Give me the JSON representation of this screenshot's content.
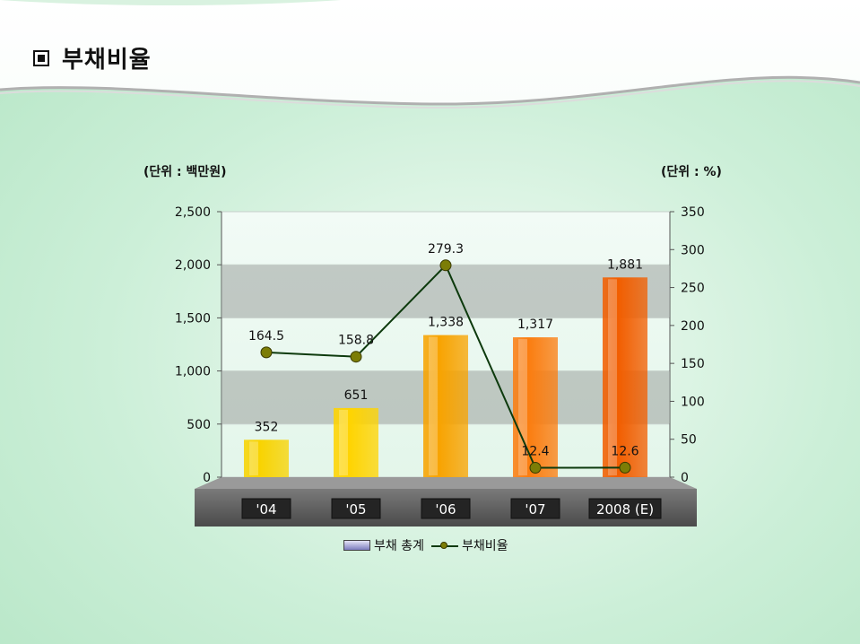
{
  "title": "부채비율",
  "left_unit": "(단위 : 백만원)",
  "right_unit": "(단위 : %)",
  "legend": {
    "bar_label": "부채 총계",
    "line_label": "부채비율"
  },
  "chart_data": {
    "type": "bar",
    "categories": [
      "'04",
      "'05",
      "'06",
      "'07",
      "2008 (E)"
    ],
    "series": [
      {
        "name": "부채 총계",
        "type": "bar",
        "axis": "left",
        "values": [
          352,
          651,
          1338,
          1317,
          1881
        ],
        "labels": [
          "352",
          "651",
          "1,338",
          "1,317",
          "1,881"
        ]
      },
      {
        "name": "부채비율",
        "type": "line",
        "axis": "right",
        "values": [
          164.5,
          158.8,
          279.3,
          12.4,
          12.6
        ],
        "labels": [
          "164.5",
          "158.8",
          "279.3",
          "12.4",
          "12.6"
        ]
      }
    ],
    "left_axis": {
      "ylim": [
        0,
        2500
      ],
      "ticks": [
        0,
        500,
        1000,
        1500,
        2000,
        2500
      ],
      "tick_labels": [
        "0",
        "500",
        "1,000",
        "1,500",
        "2,000",
        "2,500"
      ]
    },
    "right_axis": {
      "ylim": [
        0,
        350
      ],
      "ticks": [
        0,
        50,
        100,
        150,
        200,
        250,
        300,
        350
      ],
      "tick_labels": [
        "0",
        "50",
        "100",
        "150",
        "200",
        "250",
        "300",
        "350"
      ]
    },
    "bar_colors": [
      "#f8d300",
      "#ffd400",
      "#f8a300",
      "#fb7d10",
      "#f25e00"
    ],
    "line_color": "#0d3a0d",
    "marker_color": "#7c7d06",
    "grid": true,
    "legend_position": "bottom"
  }
}
